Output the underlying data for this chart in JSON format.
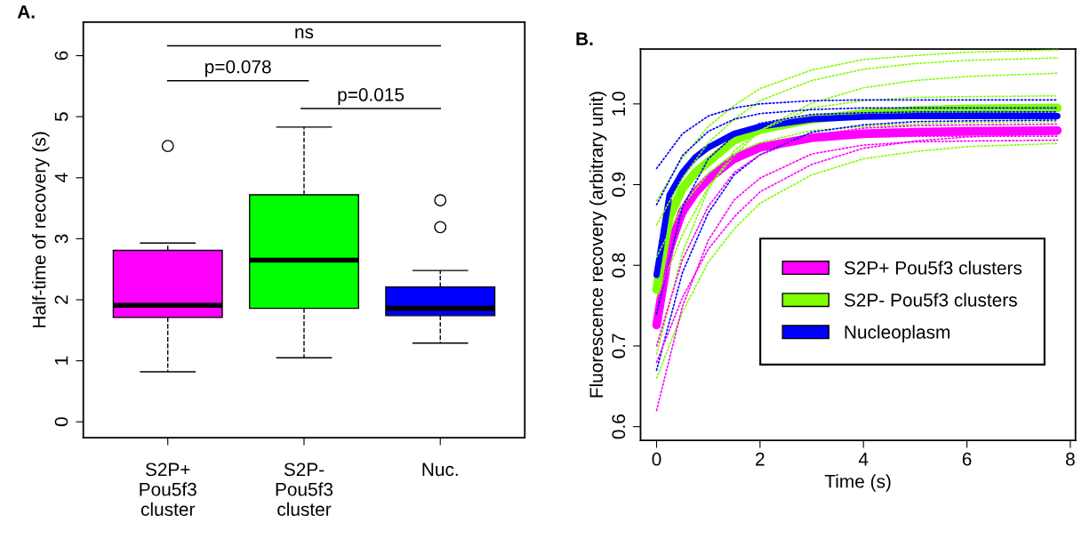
{
  "chart_data": [
    {
      "type": "box",
      "title": "A.",
      "ylabel": "Half-time of recovery (s)",
      "categories": [
        "S2P+\nPou5f3\ncluster",
        "S2P-\nPou5f3\ncluster",
        "Nuc."
      ],
      "colors": [
        "#ff00ff",
        "#00ff00",
        "#0000ff"
      ],
      "boxes": [
        {
          "low": 0.82,
          "q1": 1.71,
          "median": 1.91,
          "q3": 2.81,
          "high": 2.93,
          "outliers": [
            4.52
          ]
        },
        {
          "low": 1.05,
          "q1": 1.86,
          "median": 2.65,
          "q3": 3.72,
          "high": 4.83
        },
        {
          "low": 1.29,
          "q1": 1.74,
          "median": 1.86,
          "q3": 2.21,
          "high": 2.48,
          "outliers": [
            3.19,
            3.63
          ]
        }
      ],
      "ylim": [
        -0.26,
        6.55
      ],
      "yticks": [
        0,
        1,
        2,
        3,
        4,
        5,
        6
      ],
      "annotations": [
        "ns",
        "p=0.078",
        "p=0.015"
      ],
      "grid": false
    },
    {
      "type": "line",
      "title": "B.",
      "xlabel": "Time (s)",
      "ylabel": "Fluorescence recovery (arbitrary unit)",
      "x": [
        0,
        0.5,
        1,
        1.5,
        2,
        3,
        4,
        5,
        6,
        7.75
      ],
      "series": [
        {
          "color": "#7fff00",
          "line_style": "dotted",
          "values": [
            0.88,
            0.933,
            0.972,
            0.998,
            1.019,
            1.042,
            1.055,
            1.06,
            1.064,
            1.067
          ]
        },
        {
          "color": "#7fff00",
          "line_style": "dotted",
          "values": [
            0.85,
            0.908,
            0.952,
            0.981,
            1.004,
            1.029,
            1.043,
            1.05,
            1.054,
            1.057
          ]
        },
        {
          "color": "#7fff00",
          "line_style": "dotted",
          "values": [
            0.76,
            0.838,
            0.897,
            0.936,
            0.967,
            1.001,
            1.02,
            1.029,
            1.034,
            1.038
          ]
        },
        {
          "color": "#7fff00",
          "line_style": "dotted",
          "values": [
            0.69,
            0.815,
            0.895,
            0.942,
            0.967,
            0.995,
            1.004,
            1.008,
            1.009,
            1.01
          ]
        },
        {
          "color": "#7fff00",
          "line_style": "dotted",
          "values": [
            0.66,
            0.742,
            0.804,
            0.845,
            0.877,
            0.912,
            0.932,
            0.941,
            0.947,
            0.951
          ]
        },
        {
          "color": "#7fff00",
          "line_style": "dotted",
          "values": [
            0.81,
            0.874,
            0.914,
            0.939,
            0.952,
            0.967,
            0.972,
            0.975,
            0.977,
            0.978
          ]
        },
        {
          "color": "#0000ff",
          "line_style": "dotted",
          "values": [
            0.92,
            0.963,
            0.985,
            0.995,
            1.0,
            1.004,
            1.005,
            1.005,
            1.005,
            1.005
          ]
        },
        {
          "color": "#0000ff",
          "line_style": "dotted",
          "values": [
            0.875,
            0.936,
            0.966,
            0.981,
            0.988,
            0.993,
            0.995,
            0.995,
            0.995,
            0.995
          ]
        },
        {
          "color": "#0000ff",
          "line_style": "dotted",
          "values": [
            0.67,
            0.791,
            0.865,
            0.912,
            0.937,
            0.965,
            0.974,
            0.978,
            0.979,
            0.98
          ]
        },
        {
          "color": "#0000ff",
          "line_style": "dotted",
          "values": [
            0.74,
            0.872,
            0.932,
            0.961,
            0.976,
            0.987,
            0.989,
            0.99,
            0.99,
            0.99
          ]
        },
        {
          "color": "#ff00ff",
          "line_style": "dotted",
          "values": [
            0.62,
            0.749,
            0.831,
            0.881,
            0.908,
            0.938,
            0.949,
            0.953,
            0.954,
            0.955
          ]
        },
        {
          "color": "#ff00ff",
          "line_style": "dotted",
          "values": [
            0.7,
            0.807,
            0.873,
            0.915,
            0.937,
            0.961,
            0.97,
            0.973,
            0.974,
            0.975
          ]
        },
        {
          "color": "#ff00ff",
          "line_style": "dotted",
          "values": [
            0.75,
            0.857,
            0.91,
            0.935,
            0.947,
            0.957,
            0.959,
            0.96,
            0.96,
            0.96
          ]
        },
        {
          "color": "#ff00ff",
          "line_style": "dotted",
          "values": [
            0.68,
            0.76,
            0.82,
            0.86,
            0.891,
            0.925,
            0.945,
            0.954,
            0.959,
            0.963
          ]
        },
        {
          "name": "S2P+ Pou5f3 clusters",
          "color": "#ff00ff",
          "line_style": "solid",
          "x": [
            0,
            0.25,
            0.5,
            0.75,
            1,
            1.5,
            2,
            3,
            4,
            5,
            6,
            7.75
          ],
          "values": [
            0.726,
            0.822,
            0.867,
            0.89,
            0.907,
            0.932,
            0.946,
            0.958,
            0.963,
            0.965,
            0.966,
            0.967
          ]
        },
        {
          "name": "S2P- Pou5f3 clusters",
          "color": "#7fff00",
          "line_style": "solid",
          "x": [
            0,
            0.25,
            0.5,
            0.75,
            1,
            1.5,
            2,
            3,
            4,
            5,
            6,
            7.75
          ],
          "values": [
            0.77,
            0.86,
            0.895,
            0.915,
            0.928,
            0.955,
            0.968,
            0.981,
            0.988,
            0.992,
            0.994,
            0.995
          ]
        },
        {
          "name": "Nucleoplasm",
          "color": "#0000ff",
          "line_style": "solid",
          "x": [
            0,
            0.25,
            0.5,
            0.75,
            1,
            1.5,
            2,
            3,
            4,
            5,
            6,
            7.75
          ],
          "values": [
            0.788,
            0.887,
            0.915,
            0.934,
            0.946,
            0.963,
            0.972,
            0.981,
            0.984,
            0.985,
            0.985,
            0.985
          ]
        }
      ],
      "xlim": [
        -0.31,
        8.1
      ],
      "xticks": [
        0,
        2,
        4,
        6,
        8
      ],
      "ylim": [
        0.583,
        1.068
      ],
      "yticks": [
        0.6,
        0.7,
        0.8,
        0.9,
        {
          "value": 1,
          "label": "1.0"
        }
      ],
      "legend": "bottom right",
      "grid": false
    }
  ]
}
